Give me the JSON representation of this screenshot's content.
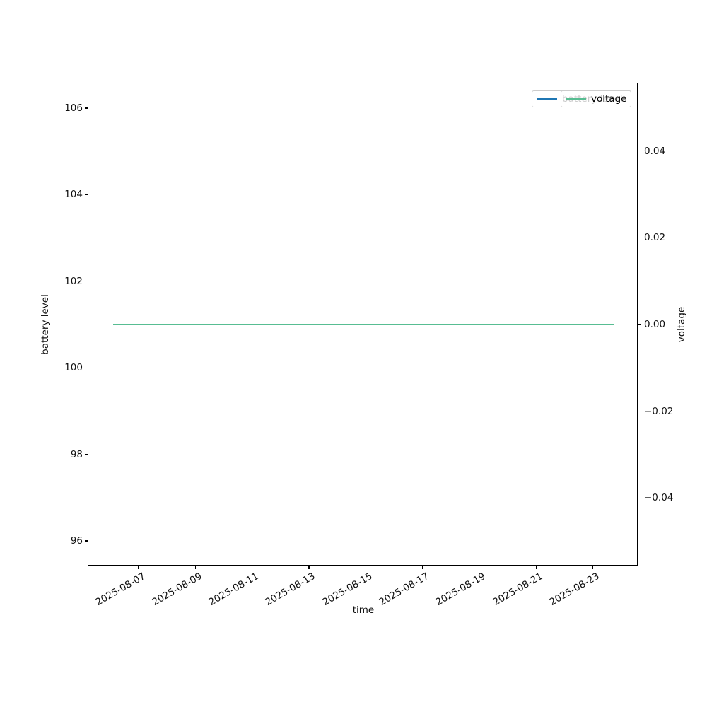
{
  "chart_data": {
    "type": "line",
    "title": "",
    "xlabel": "time",
    "ylabel_left": "battery level",
    "ylabel_right": "voltage",
    "x_ticks": [
      "2025-08-07",
      "2025-08-09",
      "2025-08-11",
      "2025-08-13",
      "2025-08-15",
      "2025-08-17",
      "2025-08-19",
      "2025-08-21",
      "2025-08-23"
    ],
    "x_tick_rotation_deg": 30,
    "x_range": [
      "2025-08-06",
      "2025-08-24"
    ],
    "yticks_left": [
      96,
      98,
      100,
      102,
      104,
      106
    ],
    "ylim_left": [
      95.4,
      106.6
    ],
    "yticks_right": [
      -0.04,
      -0.02,
      0.0,
      0.02,
      0.04
    ],
    "ylim_right": [
      -0.057,
      0.057
    ],
    "grid": false,
    "legend_position": "upper right",
    "series": [
      {
        "name": "battery level",
        "axis": "left",
        "color": "#1f77b4",
        "value": 101,
        "x_start": "2025-08-06",
        "x_end": "2025-08-24",
        "note": "constant horizontal line at 101; hidden underneath the voltage line"
      },
      {
        "name": "voltage",
        "axis": "right",
        "color": "#58bd92",
        "value": 0.0,
        "x_start": "2025-08-06",
        "x_end": "2025-08-24",
        "note": "constant horizontal line at 0.00, drawn on top"
      }
    ]
  }
}
